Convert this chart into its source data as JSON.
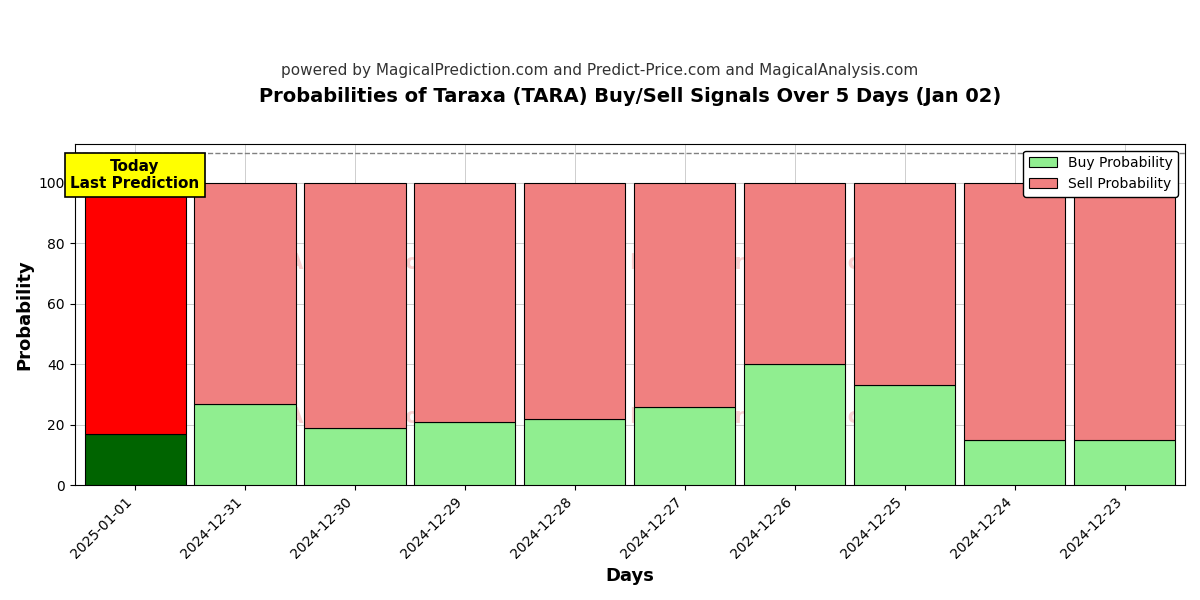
{
  "title": "Probabilities of Taraxa (TARA) Buy/Sell Signals Over 5 Days (Jan 02)",
  "subtitle": "powered by MagicalPrediction.com and Predict-Price.com and MagicalAnalysis.com",
  "xlabel": "Days",
  "ylabel": "Probability",
  "categories": [
    "2025-01-01",
    "2024-12-31",
    "2024-12-30",
    "2024-12-29",
    "2024-12-28",
    "2024-12-27",
    "2024-12-26",
    "2024-12-25",
    "2024-12-24",
    "2024-12-23"
  ],
  "buy_values": [
    17,
    27,
    19,
    21,
    22,
    26,
    40,
    33,
    15,
    15
  ],
  "sell_values": [
    83,
    73,
    81,
    79,
    78,
    74,
    60,
    67,
    85,
    85
  ],
  "today_buy_color": "#006400",
  "today_sell_color": "#FF0000",
  "buy_color": "#90EE90",
  "sell_color": "#F08080",
  "bar_edge_color": "#000000",
  "ylim": [
    0,
    113
  ],
  "dashed_line_y": 110,
  "today_label_text": "Today\nLast Prediction",
  "today_label_bg": "#FFFF00",
  "legend_buy_label": "Buy Probability",
  "legend_sell_label": "Sell Probability",
  "background_color": "#ffffff",
  "grid_color": "#aaaaaa",
  "title_fontsize": 14,
  "subtitle_fontsize": 11,
  "axis_label_fontsize": 13,
  "tick_fontsize": 10,
  "bar_width": 0.92
}
